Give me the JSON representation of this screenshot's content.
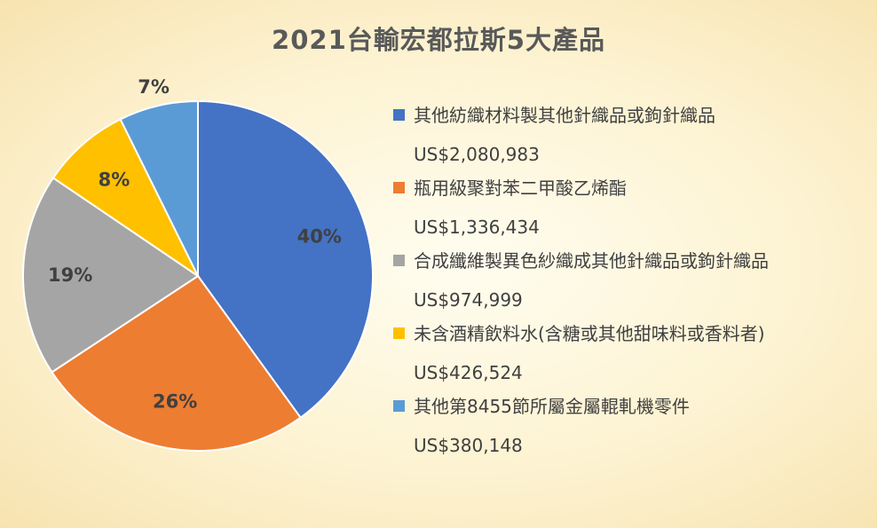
{
  "chart_data": {
    "type": "pie",
    "title": "2021台輸宏都拉斯5大產品",
    "legend_position": "right",
    "slices": [
      {
        "name": "其他紡織材料製其他針織品或鉤針織品",
        "value": 2080983,
        "value_label": "US$2,080,983",
        "percent_label": "40%",
        "color": "#4472c4"
      },
      {
        "name": "瓶用級聚對苯二甲酸乙烯酯",
        "value": 1336434,
        "value_label": "US$1,336,434",
        "percent_label": "26%",
        "color": "#ed7d31"
      },
      {
        "name": "合成纖維製異色紗織成其他針織品或鉤針織品",
        "value": 974999,
        "value_label": "US$974,999",
        "percent_label": "19%",
        "color": "#a5a5a5"
      },
      {
        "name": "未含酒精飲料水(含糖或其他甜味料或香料者)",
        "value": 426524,
        "value_label": "US$426,524",
        "percent_label": "8%",
        "color": "#ffc000"
      },
      {
        "name": "其他第8455節所屬金屬輥軋機零件",
        "value": 380148,
        "value_label": "US$380,148",
        "percent_label": "7%",
        "color": "#5b9bd5"
      }
    ]
  }
}
